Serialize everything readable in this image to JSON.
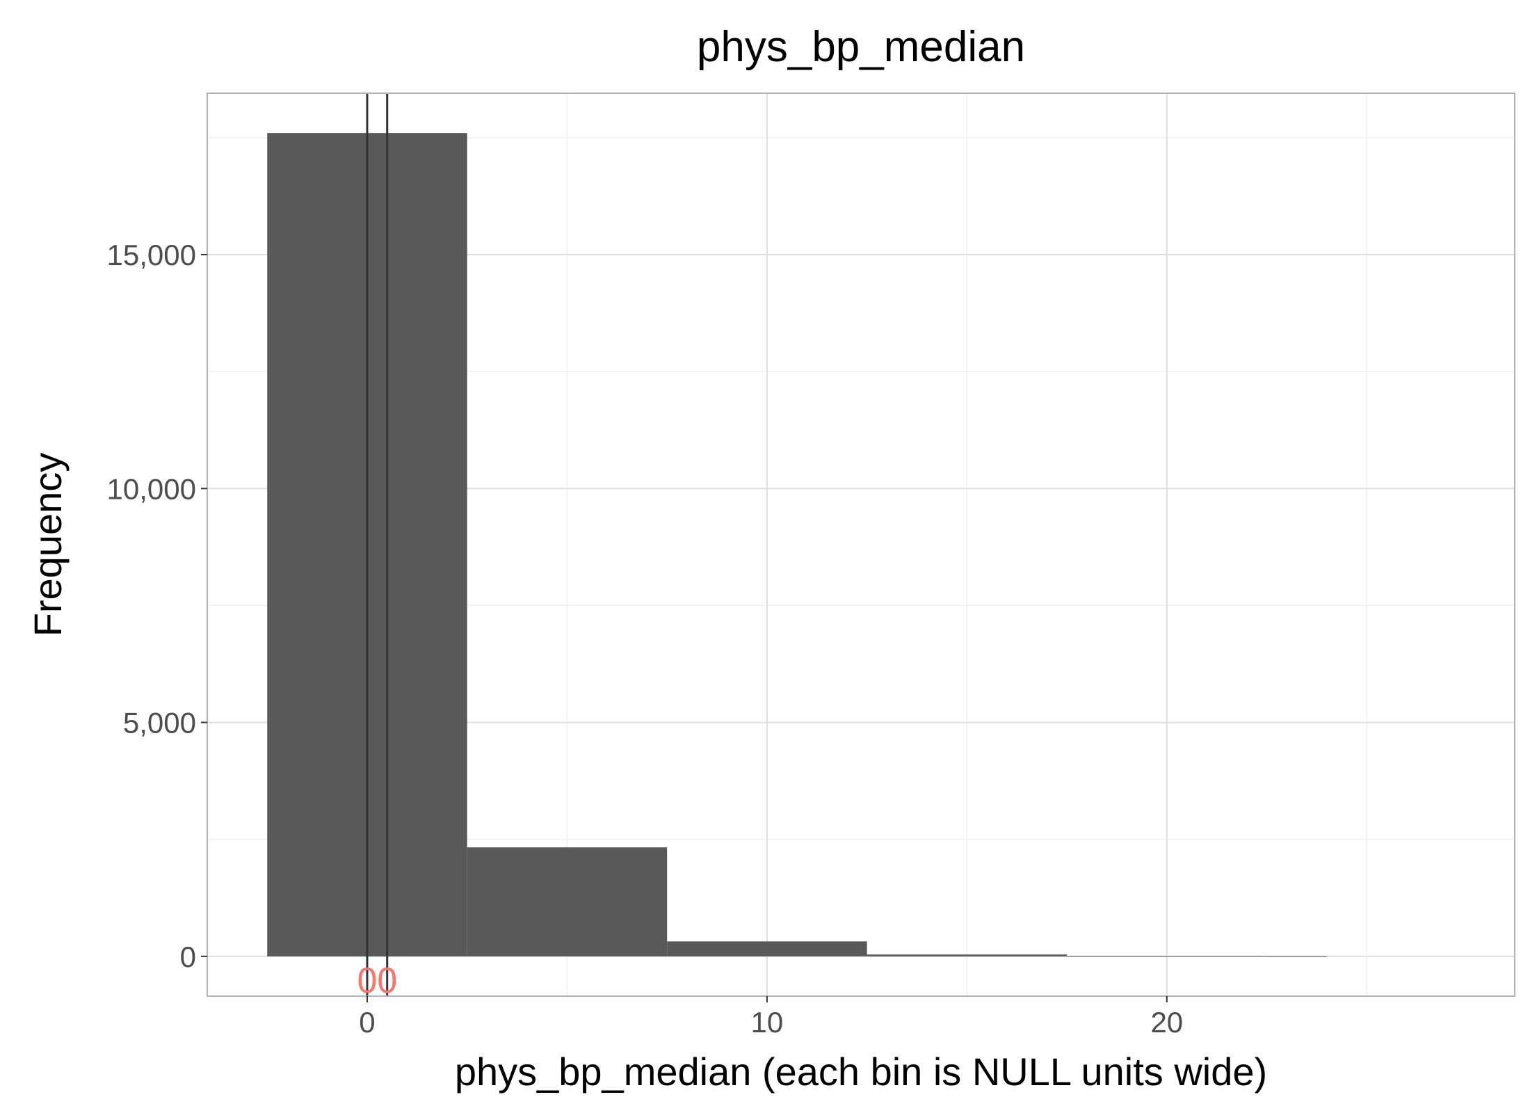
{
  "chart_data": {
    "type": "bar",
    "subtype": "histogram",
    "title": "phys_bp_median",
    "xlabel": "phys_bp_median (each bin is NULL units wide)",
    "ylabel": "Frequency",
    "bins": [
      {
        "x0": -2.5,
        "x1": 2.5,
        "count": 17600
      },
      {
        "x0": 2.5,
        "x1": 7.5,
        "count": 2330
      },
      {
        "x0": 7.5,
        "x1": 12.5,
        "count": 320
      },
      {
        "x0": 12.5,
        "x1": 17.5,
        "count": 40
      },
      {
        "x0": 17.5,
        "x1": 22.5,
        "count": 10
      },
      {
        "x0": 22.5,
        "x1": 24.0,
        "count": 2
      }
    ],
    "xlim": [
      -4,
      28.7
    ],
    "ylim": [
      -850,
      18450
    ],
    "x_ticks": [
      0,
      10,
      20
    ],
    "x_tick_labels": [
      "0",
      "10",
      "20"
    ],
    "y_ticks": [
      0,
      5000,
      10000,
      15000
    ],
    "y_tick_labels": [
      "0",
      "5,000",
      "10,000",
      "15,000"
    ],
    "reference_lines": [
      {
        "x": 0,
        "label": "0"
      },
      {
        "x": 0.5,
        "label": "0"
      }
    ],
    "bar_color": "#595959",
    "reference_label_color": "#f8766d",
    "grid": true,
    "legend": "none"
  }
}
